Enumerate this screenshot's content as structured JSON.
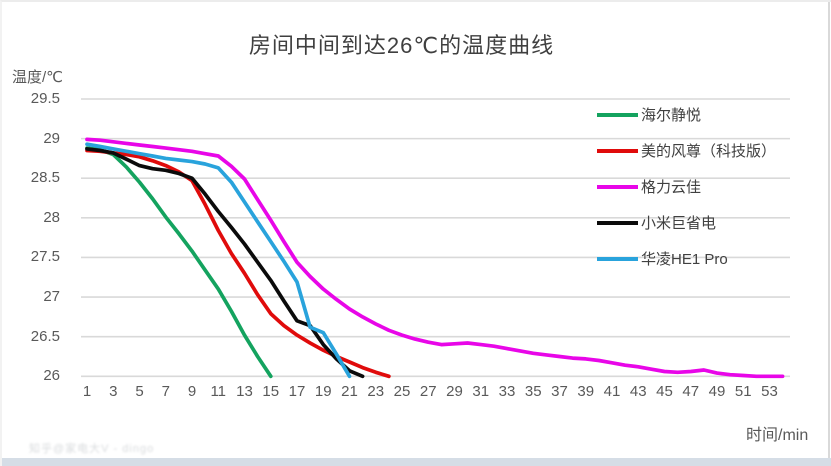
{
  "title": "房间中间到达26℃的温度曲线",
  "watermark": "知乎@家电大V - dingo",
  "chart_data": {
    "type": "line",
    "title": "房间中间到达26℃的温度曲线",
    "xlabel": "时间/min",
    "ylabel": "温度/℃",
    "xlim": [
      1,
      54
    ],
    "ylim": [
      26,
      29.5
    ],
    "grid": "horizontal-only",
    "grid_color": "#d9d9d9",
    "legend_position": "inside-right",
    "yticks": [
      "29.5",
      "29",
      "28.5",
      "28",
      "27.5",
      "27",
      "26.5",
      "26"
    ],
    "ytick_values": [
      29.5,
      29,
      28.5,
      28,
      27.5,
      27,
      26.5,
      26
    ],
    "xticks": [
      1,
      3,
      5,
      7,
      9,
      11,
      13,
      15,
      17,
      19,
      21,
      23,
      25,
      27,
      29,
      31,
      33,
      35,
      37,
      39,
      41,
      43,
      45,
      47,
      49,
      51,
      53
    ],
    "x_unit_minutes": 1,
    "series": [
      {
        "name": "海尔静悦",
        "color": "#14A35F",
        "x_start": 1,
        "values": [
          28.88,
          28.86,
          28.8,
          28.64,
          28.45,
          28.24,
          28.01,
          27.8,
          27.58,
          27.34,
          27.1,
          26.82,
          26.52,
          26.25,
          26.0
        ]
      },
      {
        "name": "美的风尊（科技版）",
        "color": "#E00B0B",
        "x_start": 1,
        "values": [
          28.85,
          28.84,
          28.82,
          28.8,
          28.77,
          28.72,
          28.66,
          28.58,
          28.47,
          28.17,
          27.84,
          27.55,
          27.3,
          27.03,
          26.79,
          26.64,
          26.52,
          26.42,
          26.33,
          26.25,
          26.18,
          26.11,
          26.05,
          26.0
        ]
      },
      {
        "name": "格力云佳",
        "color": "#E806E8",
        "x_start": 1,
        "values": [
          28.99,
          28.98,
          28.96,
          28.94,
          28.92,
          28.9,
          28.88,
          28.86,
          28.84,
          28.81,
          28.78,
          28.65,
          28.49,
          28.23,
          27.97,
          27.7,
          27.44,
          27.26,
          27.1,
          26.97,
          26.85,
          26.75,
          26.66,
          26.58,
          26.52,
          26.47,
          26.43,
          26.4,
          26.41,
          26.42,
          26.4,
          26.38,
          26.35,
          26.32,
          26.29,
          26.27,
          26.25,
          26.23,
          26.22,
          26.2,
          26.17,
          26.14,
          26.12,
          26.09,
          26.06,
          26.05,
          26.06,
          26.08,
          26.04,
          26.02,
          26.01,
          26.0,
          26.0,
          26.0
        ]
      },
      {
        "name": "小米巨省电",
        "color": "#0b0b0b",
        "x_start": 1,
        "values": [
          28.87,
          28.85,
          28.82,
          28.74,
          28.66,
          28.62,
          28.6,
          28.56,
          28.5,
          28.3,
          28.08,
          27.88,
          27.67,
          27.44,
          27.21,
          26.95,
          26.7,
          26.64,
          26.4,
          26.22,
          26.07,
          26.0
        ]
      },
      {
        "name": "华凌HE1 Pro",
        "color": "#29A3DC",
        "x_start": 1,
        "values": [
          28.93,
          28.9,
          28.87,
          28.84,
          28.81,
          28.78,
          28.75,
          28.73,
          28.71,
          28.68,
          28.63,
          28.45,
          28.2,
          27.95,
          27.7,
          27.45,
          27.19,
          26.62,
          26.55,
          26.28,
          26.0
        ]
      }
    ]
  }
}
